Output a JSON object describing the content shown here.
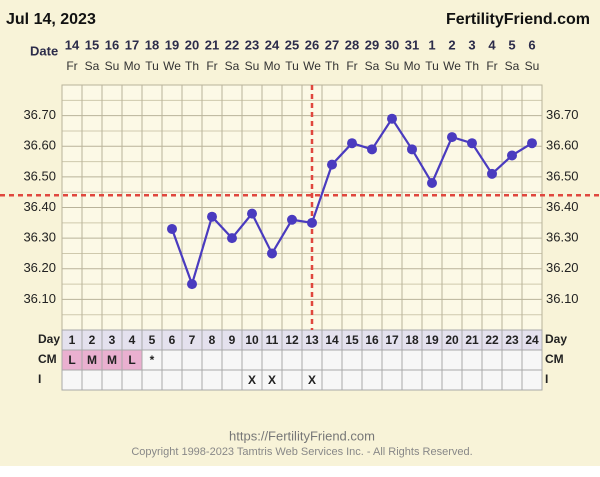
{
  "header": {
    "date": "Jul 14, 2023",
    "site": "FertilityFriend.com"
  },
  "chart_data": {
    "type": "line",
    "x_label": "Date",
    "categories": [
      "14",
      "15",
      "16",
      "17",
      "18",
      "19",
      "20",
      "21",
      "22",
      "23",
      "24",
      "25",
      "26",
      "27",
      "28",
      "29",
      "30",
      "31",
      "1",
      "2",
      "3",
      "4",
      "5",
      "6"
    ],
    "weekdays": [
      "Fr",
      "Sa",
      "Su",
      "Mo",
      "Tu",
      "We",
      "Th",
      "Fr",
      "Sa",
      "Su",
      "Mo",
      "Tu",
      "We",
      "Th",
      "Fr",
      "Sa",
      "Su",
      "Mo",
      "Tu",
      "We",
      "Th",
      "Fr",
      "Sa",
      "Su"
    ],
    "day_label": "Day",
    "days": [
      1,
      2,
      3,
      4,
      5,
      6,
      7,
      8,
      9,
      10,
      11,
      12,
      13,
      14,
      15,
      16,
      17,
      18,
      19,
      20,
      21,
      22,
      23,
      24
    ],
    "series": [
      {
        "color": "#4a3bbf",
        "values": [
          null,
          null,
          null,
          null,
          null,
          36.33,
          36.15,
          36.37,
          36.3,
          36.38,
          36.25,
          36.36,
          36.35,
          36.54,
          36.61,
          36.59,
          36.69,
          36.59,
          36.48,
          36.63,
          36.61,
          36.51,
          36.57,
          36.61
        ]
      }
    ],
    "ylim": [
      36.0,
      36.8
    ],
    "yticks": [
      {
        "value": 36.1,
        "label": "36.10"
      },
      {
        "value": 36.2,
        "label": "36.20"
      },
      {
        "value": 36.3,
        "label": "36.30"
      },
      {
        "value": 36.4,
        "label": "36.40"
      },
      {
        "value": 36.5,
        "label": "36.50"
      },
      {
        "value": 36.6,
        "label": "36.60"
      },
      {
        "value": 36.7,
        "label": "36.70"
      }
    ],
    "minor_yticks": [
      36.05,
      36.15,
      36.25,
      36.35,
      36.45,
      36.55,
      36.65,
      36.75
    ],
    "coverline": 36.44,
    "ovulation_day": 13,
    "marker_line_color": "#e0473e",
    "cm_label": "CM",
    "cm": [
      "L",
      "M",
      "M",
      "L",
      "*",
      null,
      null,
      null,
      null,
      null,
      null,
      null,
      null,
      null,
      null,
      null,
      null,
      null,
      null,
      null,
      null,
      null,
      null,
      null
    ],
    "i_label": "I",
    "intercourse": [
      null,
      null,
      null,
      null,
      null,
      null,
      null,
      null,
      null,
      "X",
      "X",
      null,
      "X",
      null,
      null,
      null,
      null,
      null,
      null,
      null,
      null,
      null,
      null,
      null
    ]
  },
  "footer": {
    "url": "https://FertilityFriend.com",
    "copyright": "Copyright 1998-2023 Tamtris Web Services Inc. - All Rights Reserved."
  }
}
